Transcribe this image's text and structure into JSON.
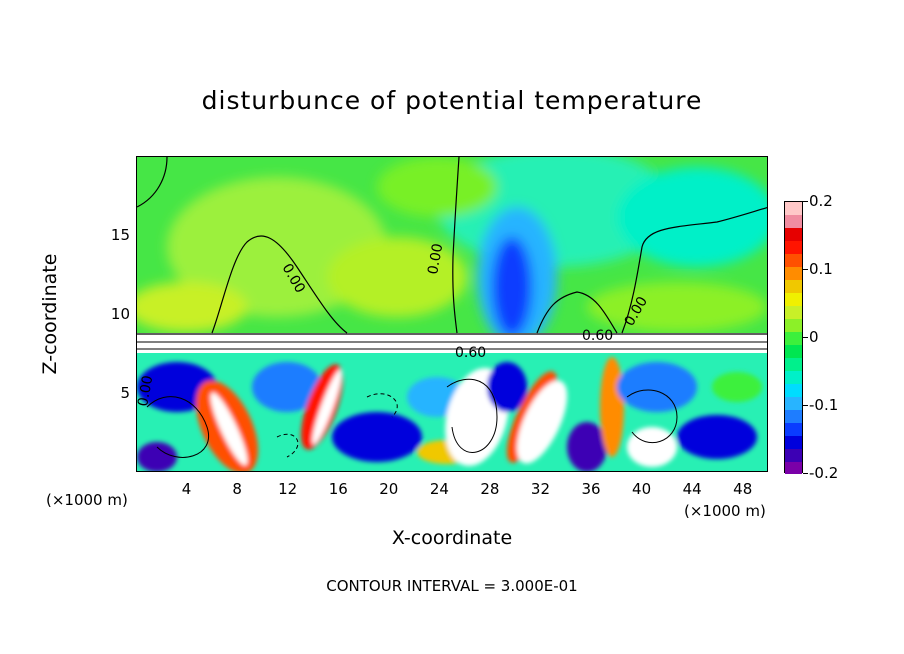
{
  "title": "disturbunce of potential temperature",
  "footer": "CONTOUR INTERVAL = 3.000E-01",
  "chart_data": {
    "type": "heatmap",
    "title": "disturbunce of potential temperature",
    "xlabel": "X-coordinate",
    "ylabel": "Z-coordinate",
    "x_unit_left": "(×1000 m)",
    "x_unit_right": "(×1000 m)",
    "xlim": [
      0,
      50
    ],
    "ylim": [
      0,
      20
    ],
    "x_ticks": [
      "4",
      "8",
      "12",
      "16",
      "20",
      "24",
      "28",
      "32",
      "36",
      "40",
      "44",
      "48"
    ],
    "y_ticks": [
      "5",
      "10",
      "15"
    ],
    "colorbar": {
      "range": [
        -0.2,
        0.2
      ],
      "tick_labels": [
        "0.2",
        "0.1",
        "0",
        "-0.1",
        "-0.2"
      ],
      "colors": [
        "#7a00a8",
        "#3c00b4",
        "#0000dc",
        "#0a3cff",
        "#1e7dff",
        "#28b4ff",
        "#00dcff",
        "#00f0c8",
        "#00f08c",
        "#00e650",
        "#3cf03c",
        "#8cf028",
        "#c8f028",
        "#f0f000",
        "#f0c800",
        "#ff8c00",
        "#ff5000",
        "#ff1400",
        "#e60000",
        "#f08ca0",
        "#ffc8c8"
      ]
    },
    "contour_labels": [
      "0.00",
      "0.00",
      "0.00",
      "0.60",
      "0.60",
      "0.00"
    ],
    "contour_interval": "3.000E-01",
    "grid": false
  }
}
